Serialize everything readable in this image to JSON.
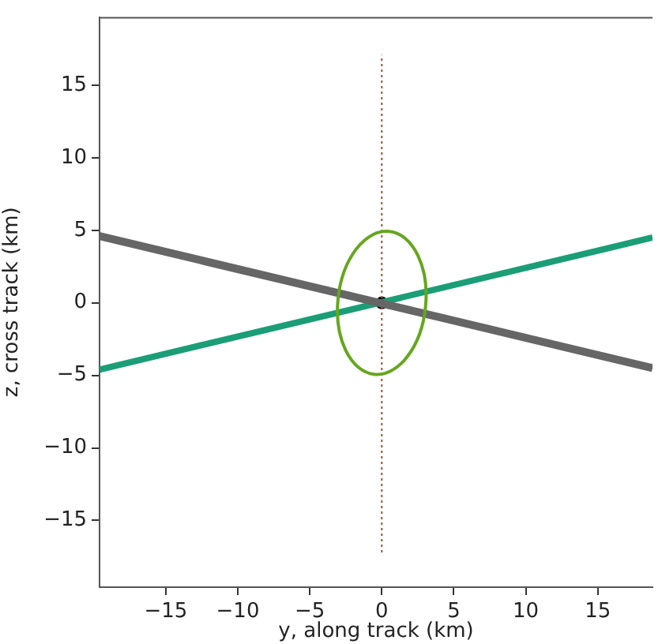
{
  "chart_data": {
    "type": "line",
    "xlabel": "y, along track (km)",
    "ylabel": "z, cross track (km)",
    "xlim": [
      -19.6,
      18.8
    ],
    "ylim": [
      -19.6,
      19.7
    ],
    "xticks": [
      -15,
      -10,
      -5,
      0,
      5,
      10,
      15
    ],
    "yticks": [
      -15,
      -10,
      -5,
      0,
      5,
      10,
      15
    ],
    "grid": false,
    "legend": false,
    "marker": "none",
    "series": [
      {
        "type": "line",
        "color": "#666666",
        "x": [
          -19.6,
          18.8
        ],
        "values": [
          4.6,
          -4.5
        ]
      },
      {
        "color": "#1b9e77",
        "x": [
          -19.6,
          18.8
        ],
        "values": [
          -4.6,
          4.5
        ]
      },
      {
        "color": "#a0522d",
        "line_style": "dotted",
        "x": [
          0,
          0
        ],
        "values": [
          -17.2,
          17.1
        ]
      },
      {
        "type": "scatter",
        "color": "#000000",
        "marker": "circle",
        "x": [
          0
        ],
        "values": [
          0
        ]
      }
    ]
  }
}
